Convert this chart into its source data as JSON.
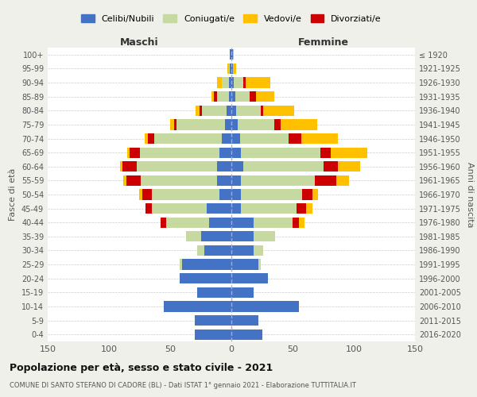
{
  "age_groups": [
    "0-4",
    "5-9",
    "10-14",
    "15-19",
    "20-24",
    "25-29",
    "30-34",
    "35-39",
    "40-44",
    "45-49",
    "50-54",
    "55-59",
    "60-64",
    "65-69",
    "70-74",
    "75-79",
    "80-84",
    "85-89",
    "90-94",
    "95-99",
    "100+"
  ],
  "birth_years": [
    "2016-2020",
    "2011-2015",
    "2006-2010",
    "2001-2005",
    "1996-2000",
    "1991-1995",
    "1986-1990",
    "1981-1985",
    "1976-1980",
    "1971-1975",
    "1966-1970",
    "1961-1965",
    "1956-1960",
    "1951-1955",
    "1946-1950",
    "1941-1945",
    "1936-1940",
    "1931-1935",
    "1926-1930",
    "1921-1925",
    "≤ 1920"
  ],
  "colors": {
    "celibi": "#4472c4",
    "coniugati": "#c5d9a0",
    "vedovi": "#ffc000",
    "divorziati": "#cc0000"
  },
  "males": {
    "celibi": [
      30,
      30,
      55,
      28,
      42,
      40,
      22,
      25,
      18,
      20,
      10,
      12,
      12,
      10,
      8,
      5,
      4,
      2,
      2,
      1,
      1
    ],
    "coniugati": [
      0,
      0,
      0,
      0,
      0,
      2,
      6,
      12,
      35,
      45,
      55,
      62,
      65,
      65,
      55,
      40,
      20,
      10,
      6,
      1,
      0
    ],
    "vedovi": [
      0,
      0,
      0,
      0,
      0,
      0,
      0,
      0,
      0,
      0,
      2,
      2,
      2,
      2,
      3,
      3,
      3,
      2,
      4,
      1,
      0
    ],
    "divorziati": [
      0,
      0,
      0,
      0,
      0,
      0,
      0,
      0,
      5,
      5,
      8,
      12,
      12,
      8,
      5,
      2,
      2,
      2,
      0,
      0,
      0
    ]
  },
  "females": {
    "nubili": [
      25,
      22,
      55,
      18,
      30,
      22,
      18,
      18,
      18,
      8,
      8,
      8,
      10,
      8,
      7,
      5,
      4,
      3,
      2,
      1,
      1
    ],
    "coniugate": [
      0,
      0,
      0,
      0,
      0,
      2,
      8,
      18,
      32,
      45,
      50,
      60,
      65,
      65,
      40,
      30,
      20,
      12,
      8,
      0,
      0
    ],
    "vedove": [
      0,
      0,
      0,
      0,
      0,
      0,
      0,
      0,
      5,
      5,
      5,
      10,
      18,
      30,
      30,
      30,
      25,
      15,
      20,
      3,
      1
    ],
    "divorziate": [
      0,
      0,
      0,
      0,
      0,
      0,
      0,
      0,
      5,
      8,
      8,
      18,
      12,
      8,
      10,
      5,
      2,
      5,
      2,
      0,
      0
    ]
  },
  "title": "Popolazione per età, sesso e stato civile - 2021",
  "subtitle": "COMUNE DI SANTO STEFANO DI CADORE (BL) - Dati ISTAT 1° gennaio 2021 - Elaborazione TUTTITALIA.IT",
  "xlabel_left": "Maschi",
  "xlabel_right": "Femmine",
  "ylabel_left": "Fasce di età",
  "ylabel_right": "Anni di nascita",
  "xlim": 150,
  "bg_color": "#f0f0eb",
  "plot_bg": "#ffffff",
  "legend_labels": [
    "Celibi/Nubili",
    "Coniugati/e",
    "Vedovi/e",
    "Divorziati/e"
  ]
}
